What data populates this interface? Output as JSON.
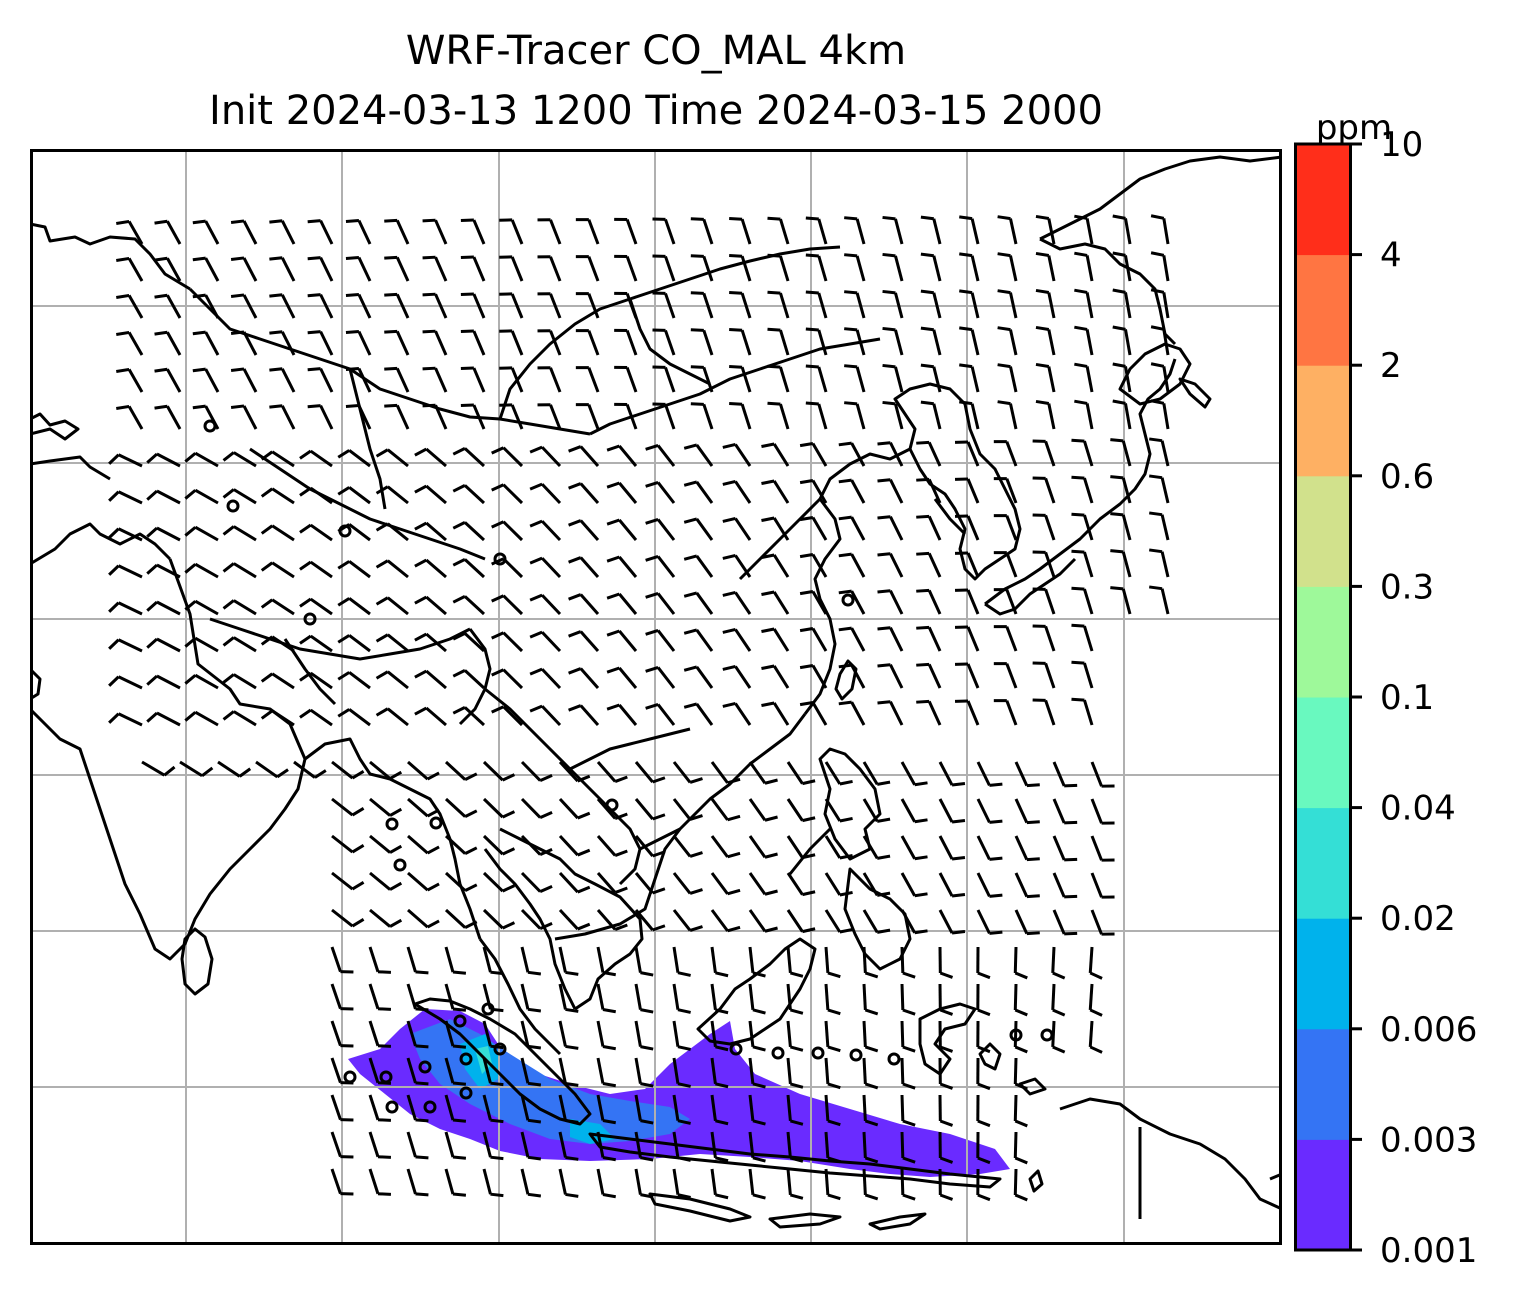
{
  "figure": {
    "title_line1": "WRF-Tracer CO_MAL 4km",
    "title_line2": "Init 2024-03-13 1200 Time 2024-03-15 2000"
  },
  "colorbar": {
    "unit": "ppm",
    "levels": [
      "0.001",
      "0.003",
      "0.006",
      "0.02",
      "0.04",
      "0.1",
      "0.3",
      "0.6",
      "2",
      "4",
      "10"
    ],
    "colors": [
      "#6a2bff",
      "#3474f4",
      "#00b2ec",
      "#34dfd6",
      "#69f9bf",
      "#9ef99a",
      "#d1e18c",
      "#feb063",
      "#ff7542",
      "#ff2e1a"
    ]
  },
  "map": {
    "frame_color": "#000000",
    "grid_color": "#b0b0b0",
    "coastline_color": "#000000",
    "barb_color": "#000000",
    "plume_note_color_min": "#6a2bff"
  }
}
